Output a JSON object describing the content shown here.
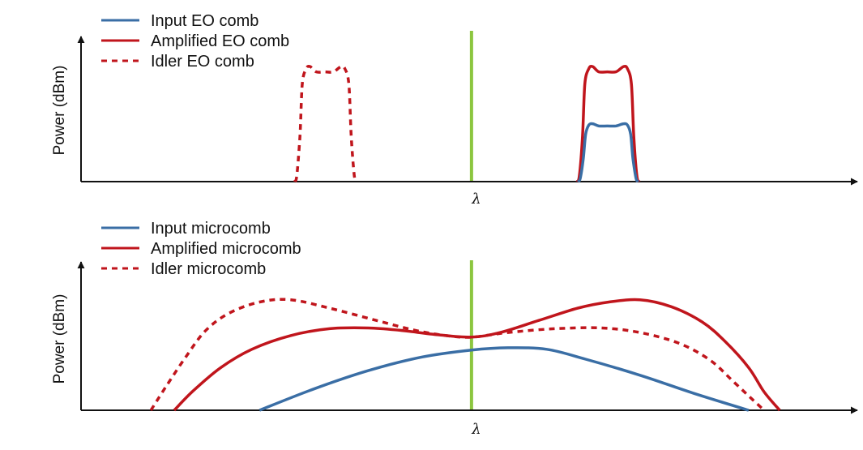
{
  "colors": {
    "input": "#3a6ea5",
    "amplified": "#c0151c",
    "idler": "#c0151c",
    "pump": "#8cc63f",
    "axis": "#111111"
  },
  "chart_data": [
    {
      "type": "line",
      "ylabel": "Power (dBm)",
      "xlabel": "λ",
      "xlim": [
        0,
        100
      ],
      "ylim": [
        0,
        100
      ],
      "ticks": "none",
      "legend_position": "top-left",
      "pump_line_x": 50.3,
      "series": [
        {
          "name": "Input EO comb",
          "role": "input",
          "style": "solid",
          "points": [
            [
              64.0,
              0
            ],
            [
              64.3,
              2
            ],
            [
              64.7,
              15
            ],
            [
              65.0,
              31
            ],
            [
              65.4,
              37
            ],
            [
              65.9,
              38
            ],
            [
              66.7,
              36.5
            ],
            [
              67.8,
              36.5
            ],
            [
              68.9,
              36.5
            ],
            [
              69.9,
              38
            ],
            [
              70.4,
              37
            ],
            [
              70.8,
              31
            ],
            [
              71.1,
              15
            ],
            [
              71.5,
              2
            ],
            [
              71.8,
              0
            ]
          ]
        },
        {
          "name": "Amplified EO comb",
          "role": "amplified",
          "style": "solid",
          "points": [
            [
              63.9,
              0
            ],
            [
              64.2,
              4
            ],
            [
              64.6,
              30
            ],
            [
              64.9,
              64
            ],
            [
              65.4,
              74
            ],
            [
              65.9,
              75.5
            ],
            [
              66.7,
              72
            ],
            [
              67.8,
              72
            ],
            [
              68.9,
              72
            ],
            [
              69.9,
              75.5
            ],
            [
              70.4,
              74
            ],
            [
              70.9,
              64
            ],
            [
              71.2,
              30
            ],
            [
              71.6,
              4
            ],
            [
              71.9,
              0
            ]
          ]
        },
        {
          "name": "Idler EO comb",
          "role": "idler",
          "style": "dashed",
          "points": [
            [
              27.5,
              0
            ],
            [
              27.8,
              4
            ],
            [
              28.2,
              30
            ],
            [
              28.5,
              64
            ],
            [
              29.0,
              74
            ],
            [
              29.5,
              75.5
            ],
            [
              30.3,
              72
            ],
            [
              31.4,
              72
            ],
            [
              32.5,
              72
            ],
            [
              33.5,
              75.5
            ],
            [
              34.0,
              74
            ],
            [
              34.5,
              64
            ],
            [
              34.8,
              30
            ],
            [
              35.2,
              4
            ],
            [
              35.5,
              0
            ]
          ]
        }
      ]
    },
    {
      "type": "line",
      "ylabel": "Power (dBm)",
      "xlabel": "λ",
      "xlim": [
        0,
        100
      ],
      "ylim": [
        0,
        100
      ],
      "ticks": "none",
      "legend_position": "top-left",
      "pump_line_x": 50.3,
      "series": [
        {
          "name": "Input microcomb",
          "role": "input",
          "style": "solid",
          "points": [
            [
              23,
              0
            ],
            [
              30,
              14
            ],
            [
              37,
              26
            ],
            [
              44,
              35
            ],
            [
              50.3,
              39.5
            ],
            [
              55,
              41
            ],
            [
              60,
              40
            ],
            [
              65,
              33.5
            ],
            [
              72,
              23
            ],
            [
              79,
              11
            ],
            [
              86,
              0
            ]
          ]
        },
        {
          "name": "Amplified microcomb",
          "role": "amplified",
          "style": "solid",
          "points": [
            [
              12,
              0
            ],
            [
              14.5,
              13
            ],
            [
              18,
              28
            ],
            [
              22,
              40
            ],
            [
              27,
              49
            ],
            [
              32,
              53.5
            ],
            [
              37,
              54
            ],
            [
              41,
              52.5
            ],
            [
              46,
              49.5
            ],
            [
              50.3,
              48
            ],
            [
              54,
              51
            ],
            [
              59,
              59
            ],
            [
              64,
              67
            ],
            [
              68,
              71
            ],
            [
              72,
              72.5
            ],
            [
              76,
              68
            ],
            [
              80,
              58
            ],
            [
              83,
              45
            ],
            [
              86,
              28
            ],
            [
              88,
              12
            ],
            [
              90,
              0
            ]
          ]
        },
        {
          "name": "Idler microcomb",
          "role": "idler",
          "style": "dashed",
          "points": [
            [
              9,
              0
            ],
            [
              11,
              16
            ],
            [
              13.5,
              35
            ],
            [
              16,
              52
            ],
            [
              19,
              63.5
            ],
            [
              23,
              71
            ],
            [
              27,
              72.5
            ],
            [
              32,
              67
            ],
            [
              38,
              59
            ],
            [
              43,
              52.5
            ],
            [
              47,
              49
            ],
            [
              50.3,
              48
            ],
            [
              55,
              51
            ],
            [
              61,
              53.5
            ],
            [
              67,
              54
            ],
            [
              72,
              51
            ],
            [
              77,
              44
            ],
            [
              81,
              33
            ],
            [
              84,
              19
            ],
            [
              86.5,
              7
            ],
            [
              88,
              0
            ]
          ]
        }
      ]
    }
  ]
}
